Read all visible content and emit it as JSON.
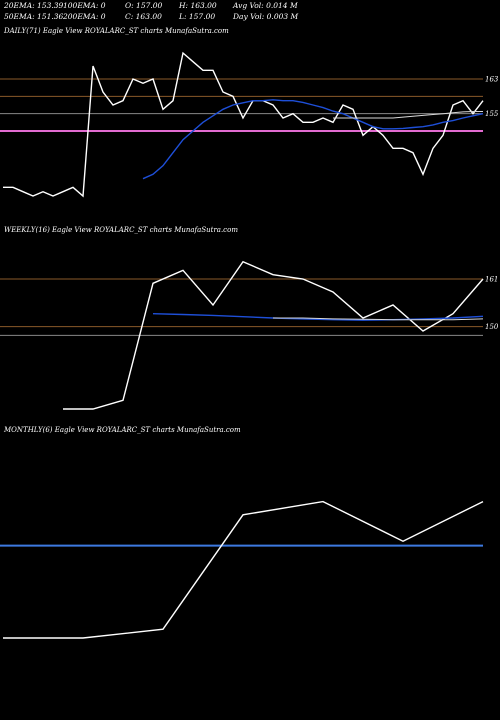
{
  "header": {
    "row1": [
      "20EMA: 153.39",
      "100EMA: 0",
      "O: 157.00",
      "H: 163.00",
      "Avg Vol: 0.014  M"
    ],
    "row2": [
      "50EMA: 151.36",
      "200EMA: 0",
      "C: 163.00",
      "L: 157.00",
      "Day Vol: 0.003 M"
    ]
  },
  "chart_data": [
    {
      "type": "line",
      "title": "DAILY(71) Eagle  View  ROYALARC_ST charts MunafaSutra.com",
      "ylim": [
        130,
        172
      ],
      "levels": [
        {
          "value": 163,
          "label": "163",
          "color": "#8a5a2a"
        },
        {
          "value": 159,
          "label": "",
          "color": "#8a5a2a"
        },
        {
          "value": 155,
          "label": "155",
          "color": "#888888"
        },
        {
          "value": 151,
          "label": "",
          "color": "#e26bd0"
        }
      ],
      "series": [
        {
          "role": "price",
          "color": "#ffffff",
          "values": [
            138,
            138,
            137,
            136,
            137,
            136,
            137,
            138,
            136,
            166,
            160,
            157,
            158,
            163,
            162,
            163,
            156,
            158,
            169,
            167,
            165,
            165,
            160,
            159,
            154,
            158,
            158,
            157,
            154,
            155,
            153,
            153,
            154,
            153,
            157,
            156,
            150,
            152,
            150,
            147,
            147,
            146,
            141,
            147,
            150,
            157,
            158,
            155,
            158
          ]
        },
        {
          "role": "ema20",
          "color": "#1e4fd8",
          "values": [
            140,
            141,
            143,
            146,
            149,
            151,
            153,
            154.5,
            156,
            157,
            157.5,
            158,
            158,
            158.2,
            158,
            158,
            157.6,
            157,
            156.4,
            155.6,
            155,
            154,
            153,
            152,
            151.5,
            151.5,
            151.6,
            151.8,
            152,
            152.4,
            153,
            153.4,
            154,
            154.5,
            155
          ]
        },
        {
          "role": "ema50",
          "color": "#d8d8d8",
          "values": [
            154,
            154,
            154,
            154,
            154,
            154,
            154,
            154.2,
            154.4,
            154.6,
            154.8,
            155,
            155.2,
            155.4,
            155.5,
            155.5
          ]
        }
      ]
    },
    {
      "type": "line",
      "title": "WEEKLY(16) Eagle  View  ROYALARC_ST charts MunafaSutra.com",
      "ylim": [
        128,
        170
      ],
      "levels": [
        {
          "value": 161,
          "label": "161",
          "color": "#8a5a2a"
        },
        {
          "value": 150,
          "label": "150",
          "color": "#8a5a2a"
        },
        {
          "value": 148,
          "label": "",
          "color": "#888888"
        }
      ],
      "series": [
        {
          "role": "price",
          "color": "#ffffff",
          "values": [
            131,
            131,
            133,
            160,
            163,
            155,
            165,
            162,
            161,
            158,
            152,
            155,
            149,
            153,
            161
          ]
        },
        {
          "role": "ema20",
          "color": "#1e4fd8",
          "values": [
            153,
            152.8,
            152.6,
            152.3,
            152,
            151.8,
            151.6,
            151.5,
            151.6,
            151.8,
            152,
            152.4
          ]
        },
        {
          "role": "ema50",
          "color": "#d8d8d8",
          "values": [
            152,
            152,
            151.8,
            151.7,
            151.6,
            151.6,
            151.6,
            151.8
          ]
        }
      ]
    },
    {
      "type": "line",
      "title": "MONTHLY(6) Eagle  View  ROYALARC_ST charts MunafaSutra.com",
      "ylim": [
        120,
        180
      ],
      "levels": [
        {
          "value": 156,
          "label": "",
          "color": "#3d79e0"
        }
      ],
      "series": [
        {
          "role": "price",
          "color": "#ffffff",
          "values": [
            135,
            135,
            137,
            163,
            166,
            157,
            166
          ]
        }
      ]
    }
  ]
}
